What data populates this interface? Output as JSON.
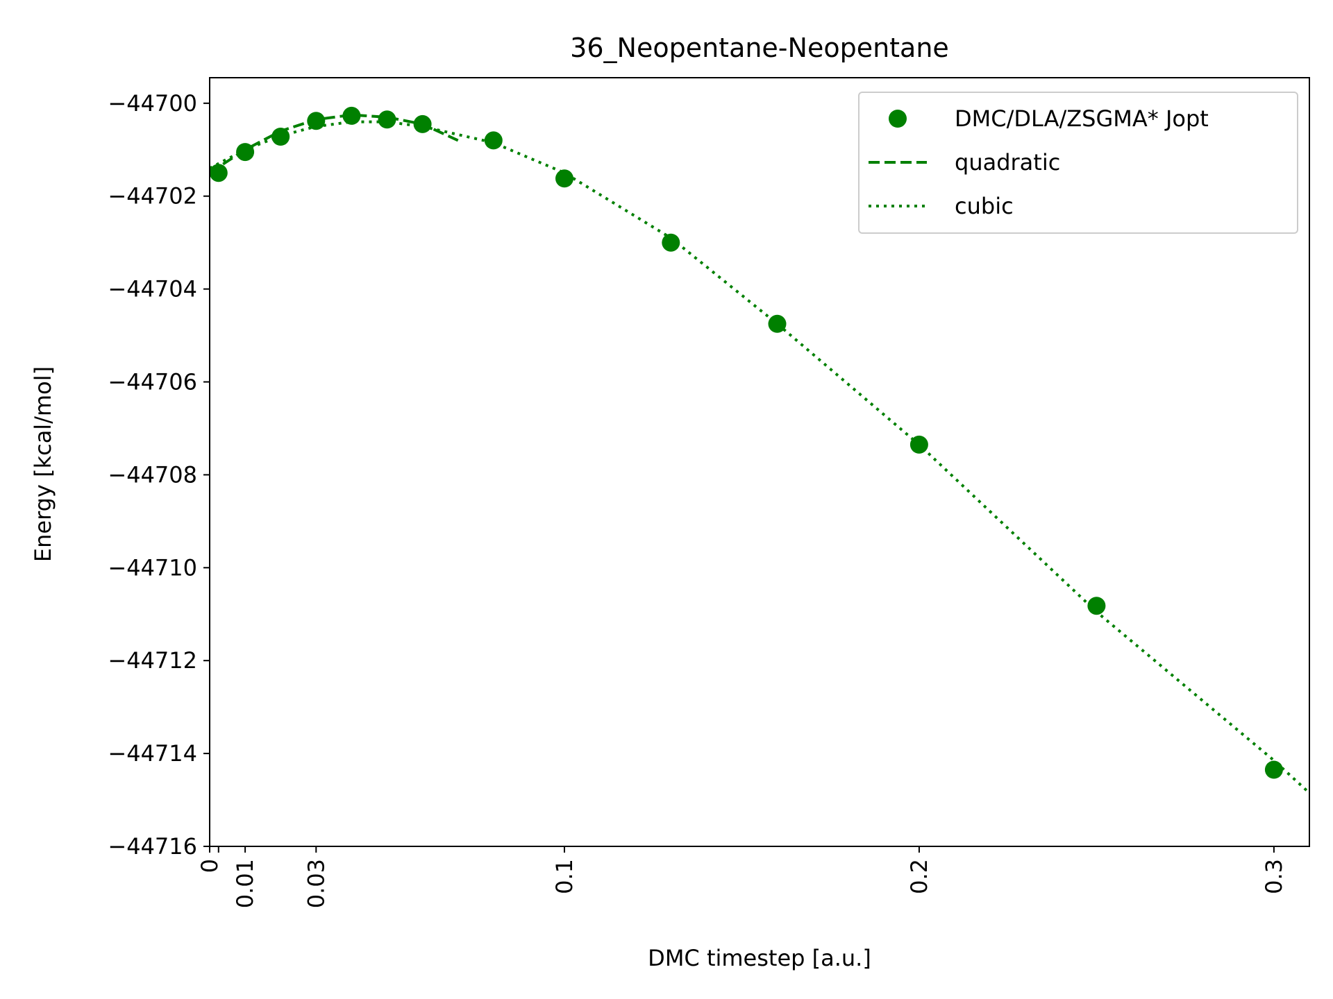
{
  "chart_data": {
    "type": "scatter",
    "title": "36_Neopentane-Neopentane",
    "xlabel": "DMC timestep [a.u.]",
    "ylabel": "Energy [kcal/mol]",
    "xlim": [
      0,
      0.31
    ],
    "ylim": [
      -44716,
      -44699.45
    ],
    "x_ticks": [
      0,
      0.0025,
      0.01,
      0.03,
      0.1,
      0.2,
      0.3
    ],
    "x_tick_labels": [
      "0",
      "",
      "0.01",
      "0.03",
      "0.1",
      "0.2",
      "0.3"
    ],
    "y_ticks": [
      -44700,
      -44702,
      -44704,
      -44706,
      -44708,
      -44710,
      -44712,
      -44714,
      -44716
    ],
    "y_tick_labels": [
      "−44700",
      "−44702",
      "−44704",
      "−44706",
      "−44708",
      "−44710",
      "−44712",
      "−44714",
      "−44716"
    ],
    "grid": false,
    "legend_position": "top-right",
    "color": "#008000",
    "series": [
      {
        "name": "DMC/DLA/ZSGMA* Jopt",
        "style": "markers",
        "x": [
          0.0025,
          0.01,
          0.02,
          0.03,
          0.04,
          0.05,
          0.06,
          0.08,
          0.1,
          0.13,
          0.16,
          0.2,
          0.25,
          0.3
        ],
        "y": [
          -44701.5,
          -44701.05,
          -44700.72,
          -44700.38,
          -44700.27,
          -44700.35,
          -44700.45,
          -44700.8,
          -44701.62,
          -44703.0,
          -44704.75,
          -44707.35,
          -44710.82,
          -44714.35
        ]
      },
      {
        "name": "quadratic",
        "style": "dashed",
        "x": [
          0,
          0.01,
          0.02,
          0.03,
          0.04,
          0.05,
          0.06,
          0.07
        ],
        "y": [
          -44701.5,
          -44701.0,
          -44700.6,
          -44700.35,
          -44700.25,
          -44700.3,
          -44700.45,
          -44700.8
        ]
      },
      {
        "name": "cubic",
        "style": "dotted",
        "x": [
          0,
          0.01,
          0.02,
          0.03,
          0.04,
          0.05,
          0.06,
          0.08,
          0.1,
          0.13,
          0.16,
          0.2,
          0.25,
          0.3,
          0.31
        ],
        "y": [
          -44701.4,
          -44701.0,
          -44700.7,
          -44700.5,
          -44700.4,
          -44700.4,
          -44700.5,
          -44700.85,
          -44701.5,
          -44702.9,
          -44704.75,
          -44707.35,
          -44710.95,
          -44714.15,
          -44714.85
        ]
      }
    ]
  }
}
